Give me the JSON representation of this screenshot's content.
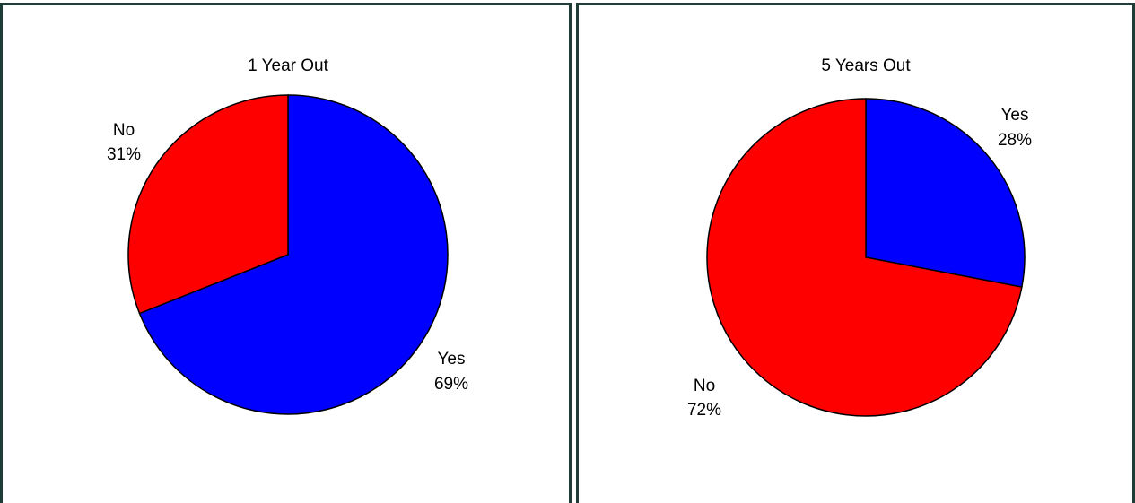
{
  "chart_data": [
    {
      "type": "pie",
      "title": "1 Year Out",
      "slices": [
        {
          "label": "Yes",
          "value": 69,
          "value_text": "69%",
          "color": "#0000ff"
        },
        {
          "label": "No",
          "value": 31,
          "value_text": "31%",
          "color": "#ff0000"
        }
      ]
    },
    {
      "type": "pie",
      "title": "5 Years Out",
      "slices": [
        {
          "label": "Yes",
          "value": 28,
          "value_text": "28%",
          "color": "#0000ff"
        },
        {
          "label": "No",
          "value": 72,
          "value_text": "72%",
          "color": "#ff0000"
        }
      ]
    }
  ],
  "colors": {
    "panel_border": "#1f3d36",
    "slice_outline": "#000000"
  }
}
